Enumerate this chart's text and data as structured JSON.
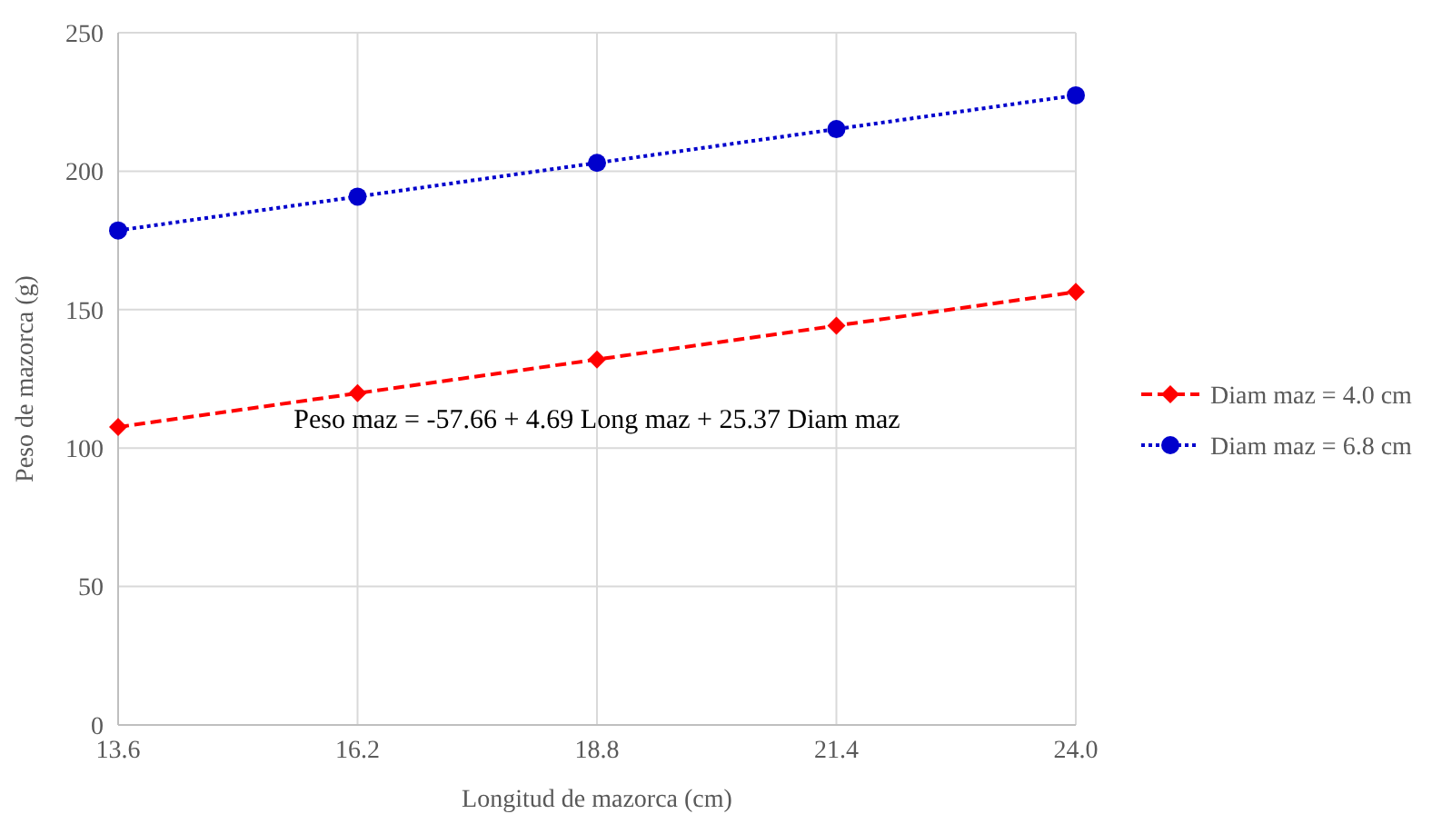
{
  "chart_data": {
    "type": "line",
    "xlabel": "Longitud de mazorca (cm)",
    "ylabel": "Peso de mazorca (g)",
    "x": [
      13.6,
      16.2,
      18.8,
      21.4,
      24.0
    ],
    "series": [
      {
        "name": "Diam maz = 4.0 cm",
        "color": "#ff0000",
        "values": [
          107.6,
          119.8,
          132,
          144.2,
          156.4
        ],
        "marker": "diamond",
        "line_style": "dashed"
      },
      {
        "name": "Diam maz = 6.8 cm",
        "color": "#0000cc",
        "values": [
          178.6,
          190.8,
          203,
          215.2,
          227.4
        ],
        "marker": "circle",
        "line_style": "dotted"
      }
    ],
    "xlim": [
      13.6,
      24
    ],
    "xticks": [
      13.6,
      16.2,
      18.8,
      21.4,
      {
        "value": 24,
        "label": "24.0"
      }
    ],
    "ylim": [
      0,
      250
    ],
    "yticks": [
      0,
      50,
      100,
      150,
      200,
      250
    ],
    "grid": true,
    "legend": "right",
    "annotations": [
      "Peso maz = -57.66 + 4.69 Long maz + 25.37 Diam maz"
    ]
  }
}
